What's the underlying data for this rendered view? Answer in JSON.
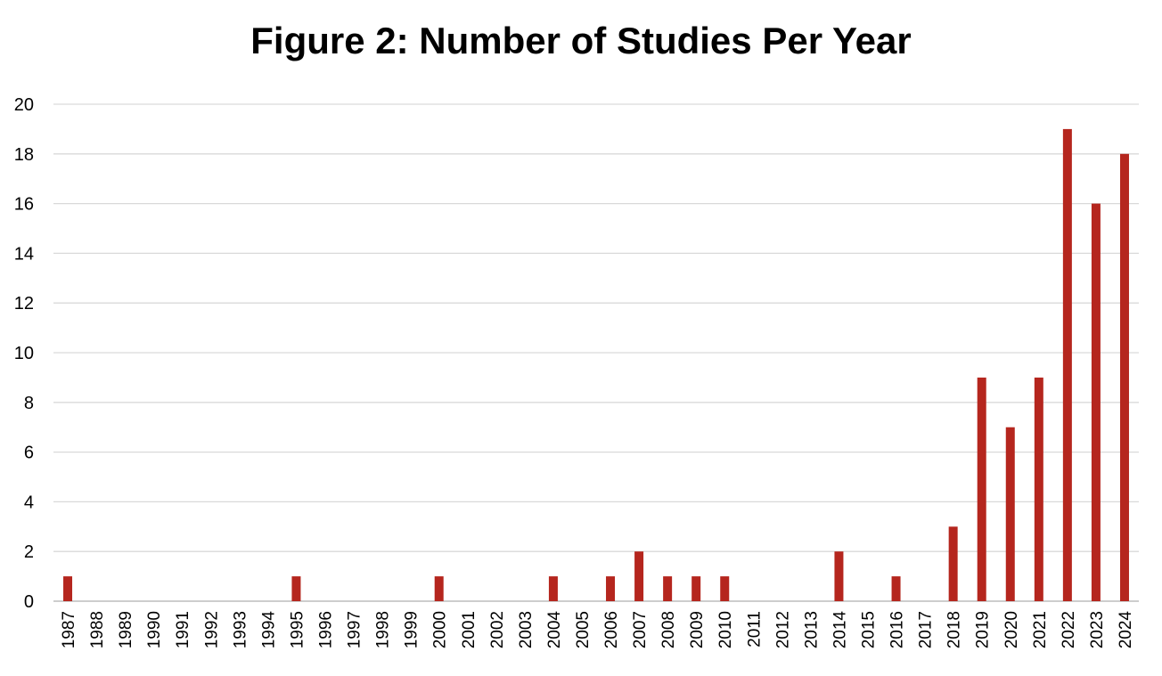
{
  "chart_data": {
    "type": "bar",
    "title": "Figure 2: Number of Studies Per Year",
    "xlabel": "",
    "ylabel": "",
    "categories": [
      "1987",
      "1988",
      "1989",
      "1990",
      "1991",
      "1992",
      "1993",
      "1994",
      "1995",
      "1996",
      "1997",
      "1998",
      "1999",
      "2000",
      "2001",
      "2002",
      "2003",
      "2004",
      "2005",
      "2006",
      "2007",
      "2008",
      "2009",
      "2010",
      "2011",
      "2012",
      "2013",
      "2014",
      "2015",
      "2016",
      "2017",
      "2018",
      "2019",
      "2020",
      "2021",
      "2022",
      "2023",
      "2024"
    ],
    "values": [
      1,
      0,
      0,
      0,
      0,
      0,
      0,
      0,
      1,
      0,
      0,
      0,
      0,
      1,
      0,
      0,
      0,
      1,
      0,
      1,
      2,
      1,
      1,
      1,
      0,
      0,
      0,
      2,
      0,
      1,
      0,
      3,
      9,
      7,
      9,
      19,
      16,
      18
    ],
    "ylim": [
      0,
      20
    ],
    "yticks": [
      "0",
      "2",
      "4",
      "6",
      "8",
      "10",
      "12",
      "14",
      "16",
      "18",
      "20"
    ],
    "grid": true,
    "legend": "none",
    "bar_color": "#B5261E",
    "grid_color": "#D9D9D9"
  }
}
